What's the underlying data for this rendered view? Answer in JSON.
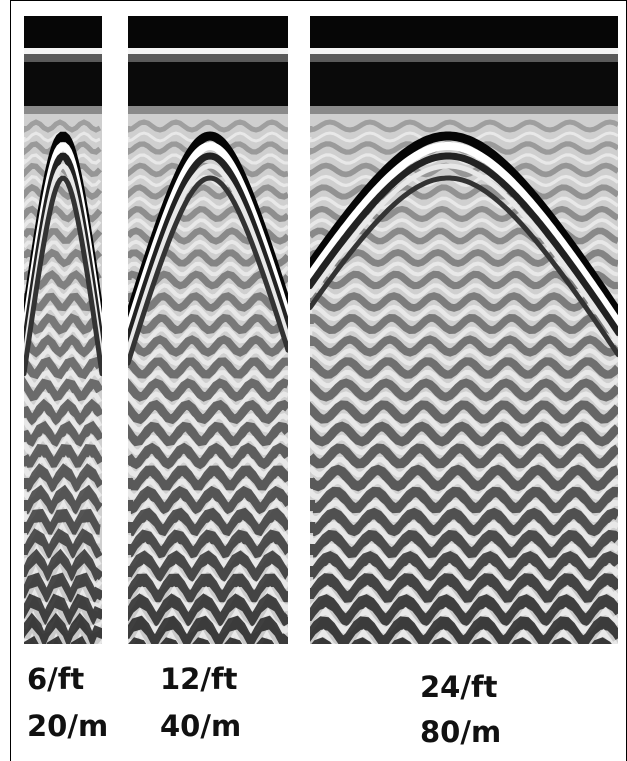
{
  "figure": {
    "background": "#ffffff",
    "label_color": "#111111",
    "panels": [
      {
        "id": "panel-6ft",
        "label_ft": "6/ft",
        "label_m": "20/m"
      },
      {
        "id": "panel-12ft",
        "label_ft": "12/ft",
        "label_m": "40/m"
      },
      {
        "id": "panel-24ft",
        "label_ft": "24/ft",
        "label_m": "80/m"
      }
    ]
  }
}
